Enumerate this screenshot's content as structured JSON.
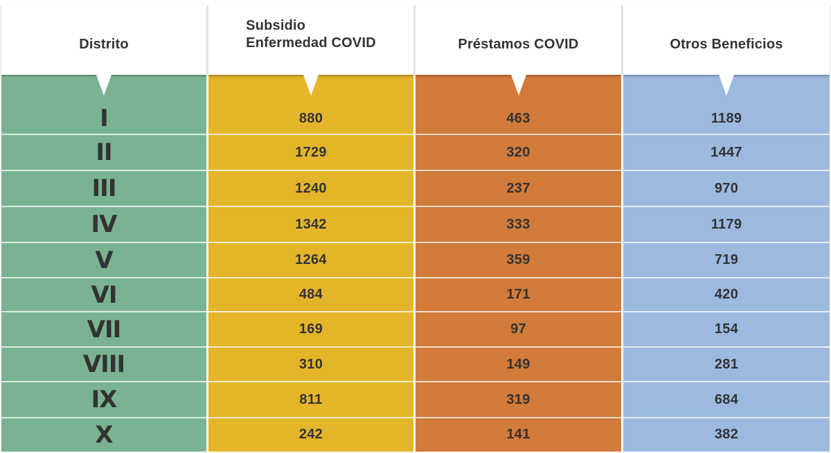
{
  "chart_data": {
    "type": "table",
    "columns": [
      {
        "header": [
          "Distrito"
        ],
        "color": "#7ab392"
      },
      {
        "header": [
          "Subsidio",
          "Enfermedad COVID"
        ],
        "color": "#e5b529"
      },
      {
        "header": [
          "Préstamos COVID"
        ],
        "color": "#d27b3a"
      },
      {
        "header": [
          "Otros Beneficios"
        ],
        "color": "#9cbae0"
      }
    ],
    "rows": [
      {
        "distrito": "I",
        "subsidio": 880,
        "prestamos": 463,
        "otros": 1189
      },
      {
        "distrito": "II",
        "subsidio": 1729,
        "prestamos": 320,
        "otros": 1447
      },
      {
        "distrito": "III",
        "subsidio": 1240,
        "prestamos": 237,
        "otros": 970
      },
      {
        "distrito": "IV",
        "subsidio": 1342,
        "prestamos": 333,
        "otros": 1179
      },
      {
        "distrito": "V",
        "subsidio": 1264,
        "prestamos": 359,
        "otros": 719
      },
      {
        "distrito": "VI",
        "subsidio": 484,
        "prestamos": 171,
        "otros": 420
      },
      {
        "distrito": "VII",
        "subsidio": 169,
        "prestamos": 97,
        "otros": 154
      },
      {
        "distrito": "VIII",
        "subsidio": 310,
        "prestamos": 149,
        "otros": 281
      },
      {
        "distrito": "IX",
        "subsidio": 811,
        "prestamos": 319,
        "otros": 684
      },
      {
        "distrito": "X",
        "subsidio": 242,
        "prestamos": 141,
        "otros": 382
      }
    ]
  }
}
